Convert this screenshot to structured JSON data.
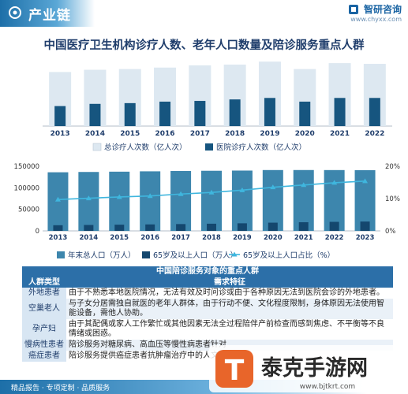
{
  "header": {
    "title": "产业链",
    "brand_name": "智研咨询",
    "brand_url": "www.chyxx.com"
  },
  "main_title": "中国医疗卫生机构诊疗人数、老年人口数量及陪诊服务重点人群",
  "chart_data": [
    {
      "type": "bar",
      "categories": [
        "2013",
        "2014",
        "2015",
        "2016",
        "2017",
        "2018",
        "2019",
        "2020",
        "2021",
        "2022"
      ],
      "series": [
        {
          "name": "总诊疗人次数（亿人次）",
          "values": [
            73,
            76,
            77,
            79,
            82,
            83,
            87,
            77,
            85,
            84
          ],
          "color": "#dde8f1"
        },
        {
          "name": "医院诊疗人次数（亿人次）",
          "values": [
            27,
            30,
            31,
            33,
            34,
            36,
            38,
            33,
            38,
            38
          ],
          "color": "#16557f"
        }
      ],
      "ylim": [
        0,
        100
      ],
      "grid": false
    },
    {
      "type": "bar",
      "categories": [
        "2013",
        "2014",
        "2015",
        "2016",
        "2017",
        "2018",
        "2019",
        "2020",
        "2021",
        "2022",
        "2023"
      ],
      "series": [
        {
          "name": "年末总人口（万人）",
          "values": [
            136072,
            136782,
            137462,
            138271,
            139008,
            139538,
            140005,
            141212,
            141260,
            141175,
            140967
          ],
          "color": "#3d86ad"
        },
        {
          "name": "65岁及以上人口（万人）",
          "values": [
            13161,
            13755,
            14386,
            15003,
            15831,
            16658,
            17603,
            19064,
            20056,
            20978,
            21676
          ],
          "color": "#14476e"
        },
        {
          "name": "65岁及以上人口占比（%）",
          "values": [
            9.7,
            10.1,
            10.5,
            10.8,
            11.4,
            11.9,
            12.6,
            13.5,
            14.2,
            14.9,
            15.4
          ],
          "type": "line",
          "axis": "right",
          "color": "#3fb6de"
        }
      ],
      "yticks": [
        "0",
        "50000",
        "100000",
        "150000"
      ],
      "ylim": [
        0,
        150000
      ],
      "y2ticks": [
        "0%",
        "10%",
        "20%"
      ],
      "y2lim": [
        0,
        20
      ]
    }
  ],
  "table": {
    "title": "中国陪诊服务对象的重点人群",
    "headers": [
      "人群类型",
      "需求特征"
    ],
    "rows": [
      {
        "type": "外地患者",
        "desc": "由于不熟悉本地医院情况，无法有效及时问诊或由于各种原因无法到医院会诊的外地患者。"
      },
      {
        "type": "空巢老人",
        "desc": "与子女分居需独自就医的老年人群体，由于行动不便、文化程度限制，身体原因无法使用智能设备，需他人协助。"
      },
      {
        "type": "孕产妇",
        "desc": "由于其配偶或家人工作繁忙或其他因素无法全过程陪伴产前检查而感到焦虑、不平衡等不良情绪或困惑。"
      },
      {
        "type": "慢病性患者",
        "desc": "陪诊服务对糖尿病、高血压等慢性病患者针对"
      },
      {
        "type": "癌症患者",
        "desc": "陪诊服务提供癌症患者抗肿瘤治疗中的人文关"
      }
    ]
  },
  "footer": {
    "text": "精品报告 · 专项定制 · 品质服务"
  },
  "watermark": {
    "text": "泰克手游网",
    "url": "www.bjtkrt.com",
    "logo_letter": "T"
  }
}
